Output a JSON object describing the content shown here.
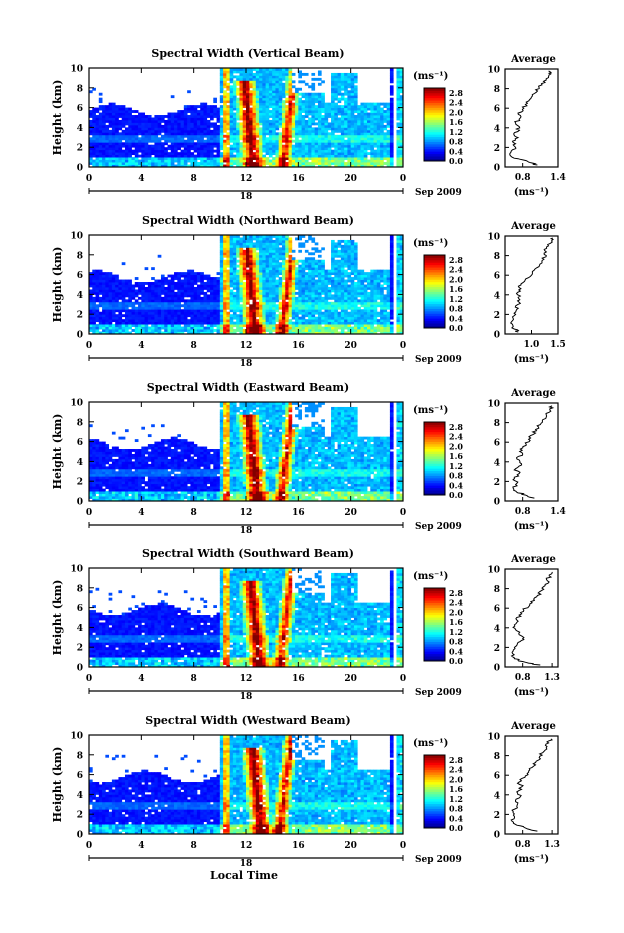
{
  "figure": {
    "xlabel": "Local Time",
    "date_label": "Sep 2009",
    "day_label": "18",
    "colorbar_unit": "(ms⁻¹)",
    "profile_title": "Average",
    "profile_xlabel": "(ms⁻¹)"
  },
  "chart_data": [
    {
      "type": "heatmap",
      "title": "Spectral Width (Vertical Beam)",
      "ylabel": "Height (km)",
      "xlabel": "",
      "x_ticks": [
        "0",
        "4",
        "8",
        "12",
        "16",
        "20",
        "0"
      ],
      "y_ticks": [
        "0",
        "2",
        "4",
        "6",
        "8",
        "10"
      ],
      "xlim": [
        0,
        24
      ],
      "ylim": [
        0,
        10
      ],
      "colorbar_ticks": [
        "0.0",
        "0.4",
        "0.8",
        "1.2",
        "1.6",
        "2.0",
        "2.4",
        "2.8"
      ],
      "colorbar_range": [
        0,
        3.0
      ],
      "profile": {
        "title": "Average",
        "xlim": [
          0.5,
          1.4
        ],
        "x_ticks": [
          "0.8",
          "1.4"
        ],
        "y_ticks": [
          "0",
          "2",
          "4",
          "6",
          "8",
          "10"
        ],
        "points": [
          [
            1.05,
            0.2
          ],
          [
            0.9,
            0.5
          ],
          [
            0.75,
            0.8
          ],
          [
            0.62,
            1.0
          ],
          [
            0.6,
            1.5
          ],
          [
            0.68,
            2.0
          ],
          [
            0.64,
            2.5
          ],
          [
            0.72,
            3.0
          ],
          [
            0.66,
            3.5
          ],
          [
            0.75,
            4.0
          ],
          [
            0.68,
            4.5
          ],
          [
            0.76,
            5.0
          ],
          [
            0.72,
            5.5
          ],
          [
            0.82,
            6.0
          ],
          [
            0.88,
            6.5
          ],
          [
            0.94,
            7.0
          ],
          [
            1.0,
            7.5
          ],
          [
            1.08,
            8.0
          ],
          [
            1.12,
            8.5
          ],
          [
            1.2,
            9.0
          ],
          [
            1.28,
            9.5
          ],
          [
            1.24,
            9.8
          ]
        ]
      }
    },
    {
      "type": "heatmap",
      "title": "Spectral Width (Northward Beam)",
      "ylabel": "Height (km)",
      "xlabel": "",
      "x_ticks": [
        "0",
        "4",
        "8",
        "12",
        "16",
        "20",
        "0"
      ],
      "y_ticks": [
        "0",
        "2",
        "4",
        "6",
        "8",
        "10"
      ],
      "xlim": [
        0,
        24
      ],
      "ylim": [
        0,
        10
      ],
      "colorbar_ticks": [
        "0.0",
        "0.4",
        "0.8",
        "1.2",
        "1.6",
        "2.0",
        "2.4",
        "2.8"
      ],
      "colorbar_range": [
        0,
        3.0
      ],
      "profile": {
        "title": "Average",
        "xlim": [
          0.5,
          1.5
        ],
        "x_ticks": [
          "1.0",
          "1.5"
        ],
        "y_ticks": [
          "0",
          "2",
          "4",
          "6",
          "8",
          "10"
        ],
        "points": [
          [
            0.75,
            0.2
          ],
          [
            0.68,
            0.5
          ],
          [
            0.64,
            1.0
          ],
          [
            0.66,
            1.5
          ],
          [
            0.7,
            2.0
          ],
          [
            0.72,
            2.5
          ],
          [
            0.74,
            3.0
          ],
          [
            0.78,
            3.5
          ],
          [
            0.74,
            4.0
          ],
          [
            0.76,
            4.5
          ],
          [
            0.8,
            5.0
          ],
          [
            0.88,
            5.5
          ],
          [
            1.0,
            6.0
          ],
          [
            1.05,
            6.5
          ],
          [
            1.15,
            7.0
          ],
          [
            1.2,
            7.5
          ],
          [
            1.28,
            8.0
          ],
          [
            1.25,
            8.5
          ],
          [
            1.32,
            9.0
          ],
          [
            1.38,
            9.5
          ],
          [
            1.4,
            9.8
          ]
        ]
      }
    },
    {
      "type": "heatmap",
      "title": "Spectral Width (Eastward Beam)",
      "ylabel": "Height (km)",
      "xlabel": "",
      "x_ticks": [
        "0",
        "4",
        "8",
        "12",
        "16",
        "20",
        "0"
      ],
      "y_ticks": [
        "0",
        "2",
        "4",
        "6",
        "8",
        "10"
      ],
      "xlim": [
        0,
        24
      ],
      "ylim": [
        0,
        10
      ],
      "colorbar_ticks": [
        "0.0",
        "0.4",
        "0.8",
        "1.2",
        "1.6",
        "2.0",
        "2.4",
        "2.8"
      ],
      "colorbar_range": [
        0,
        3.0
      ],
      "profile": {
        "title": "Average",
        "xlim": [
          0.5,
          1.4
        ],
        "x_ticks": [
          "0.8",
          "1.4"
        ],
        "y_ticks": [
          "0",
          "2",
          "4",
          "6",
          "8",
          "10"
        ],
        "points": [
          [
            1.0,
            0.3
          ],
          [
            0.85,
            0.6
          ],
          [
            0.7,
            0.9
          ],
          [
            0.64,
            1.3
          ],
          [
            0.7,
            1.8
          ],
          [
            0.66,
            2.3
          ],
          [
            0.74,
            2.8
          ],
          [
            0.68,
            3.3
          ],
          [
            0.78,
            3.8
          ],
          [
            0.7,
            4.3
          ],
          [
            0.8,
            4.8
          ],
          [
            0.76,
            5.3
          ],
          [
            0.86,
            5.8
          ],
          [
            0.9,
            6.3
          ],
          [
            0.98,
            6.8
          ],
          [
            1.02,
            7.3
          ],
          [
            1.1,
            7.8
          ],
          [
            1.14,
            8.3
          ],
          [
            1.2,
            8.8
          ],
          [
            1.26,
            9.3
          ],
          [
            1.3,
            9.7
          ]
        ]
      }
    },
    {
      "type": "heatmap",
      "title": "Spectral Width (Southward Beam)",
      "ylabel": "Height (km)",
      "xlabel": "",
      "x_ticks": [
        "0",
        "4",
        "8",
        "12",
        "16",
        "20",
        "0"
      ],
      "y_ticks": [
        "0",
        "2",
        "4",
        "6",
        "8",
        "10"
      ],
      "xlim": [
        0,
        24
      ],
      "ylim": [
        0,
        10
      ],
      "colorbar_ticks": [
        "0.0",
        "0.4",
        "0.8",
        "1.2",
        "1.6",
        "2.0",
        "2.4",
        "2.8"
      ],
      "colorbar_range": [
        0,
        3.0
      ],
      "profile": {
        "title": "Average",
        "xlim": [
          0.5,
          1.4
        ],
        "x_ticks": [
          "0.8",
          "1.3"
        ],
        "y_ticks": [
          "0",
          "2",
          "4",
          "6",
          "8",
          "10"
        ],
        "points": [
          [
            1.1,
            0.2
          ],
          [
            0.9,
            0.4
          ],
          [
            0.72,
            0.7
          ],
          [
            0.64,
            1.0
          ],
          [
            0.62,
            1.5
          ],
          [
            0.66,
            2.0
          ],
          [
            0.72,
            2.5
          ],
          [
            0.8,
            2.9
          ],
          [
            0.74,
            3.3
          ],
          [
            0.68,
            3.8
          ],
          [
            0.66,
            4.3
          ],
          [
            0.7,
            4.8
          ],
          [
            0.74,
            5.3
          ],
          [
            0.82,
            5.8
          ],
          [
            0.92,
            6.3
          ],
          [
            1.0,
            6.8
          ],
          [
            1.05,
            7.3
          ],
          [
            1.12,
            7.8
          ],
          [
            1.18,
            8.3
          ],
          [
            1.22,
            8.8
          ],
          [
            1.25,
            9.3
          ],
          [
            1.3,
            9.7
          ]
        ]
      }
    },
    {
      "type": "heatmap",
      "title": "Spectral Width (Westward Beam)",
      "ylabel": "Height (km)",
      "xlabel": "Local Time",
      "x_ticks": [
        "0",
        "4",
        "8",
        "12",
        "16",
        "20",
        "0"
      ],
      "y_ticks": [
        "0",
        "2",
        "4",
        "6",
        "8",
        "10"
      ],
      "xlim": [
        0,
        24
      ],
      "ylim": [
        0,
        10
      ],
      "colorbar_ticks": [
        "0.0",
        "0.4",
        "0.8",
        "1.2",
        "1.6",
        "2.0",
        "2.4",
        "2.8"
      ],
      "colorbar_range": [
        0,
        3.0
      ],
      "profile": {
        "title": "Average",
        "xlim": [
          0.5,
          1.4
        ],
        "x_ticks": [
          "0.8",
          "1.3"
        ],
        "y_ticks": [
          "0",
          "2",
          "4",
          "6",
          "8",
          "10"
        ],
        "points": [
          [
            1.05,
            0.3
          ],
          [
            0.85,
            0.6
          ],
          [
            0.7,
            0.9
          ],
          [
            0.62,
            1.3
          ],
          [
            0.66,
            1.8
          ],
          [
            0.64,
            2.3
          ],
          [
            0.7,
            2.8
          ],
          [
            0.68,
            3.3
          ],
          [
            0.76,
            3.8
          ],
          [
            0.7,
            4.3
          ],
          [
            0.78,
            4.8
          ],
          [
            0.74,
            5.3
          ],
          [
            0.84,
            5.8
          ],
          [
            0.9,
            6.3
          ],
          [
            0.96,
            6.8
          ],
          [
            1.02,
            7.3
          ],
          [
            1.08,
            7.8
          ],
          [
            1.14,
            8.3
          ],
          [
            1.2,
            8.8
          ],
          [
            1.24,
            9.3
          ],
          [
            1.28,
            9.7
          ]
        ]
      }
    }
  ]
}
